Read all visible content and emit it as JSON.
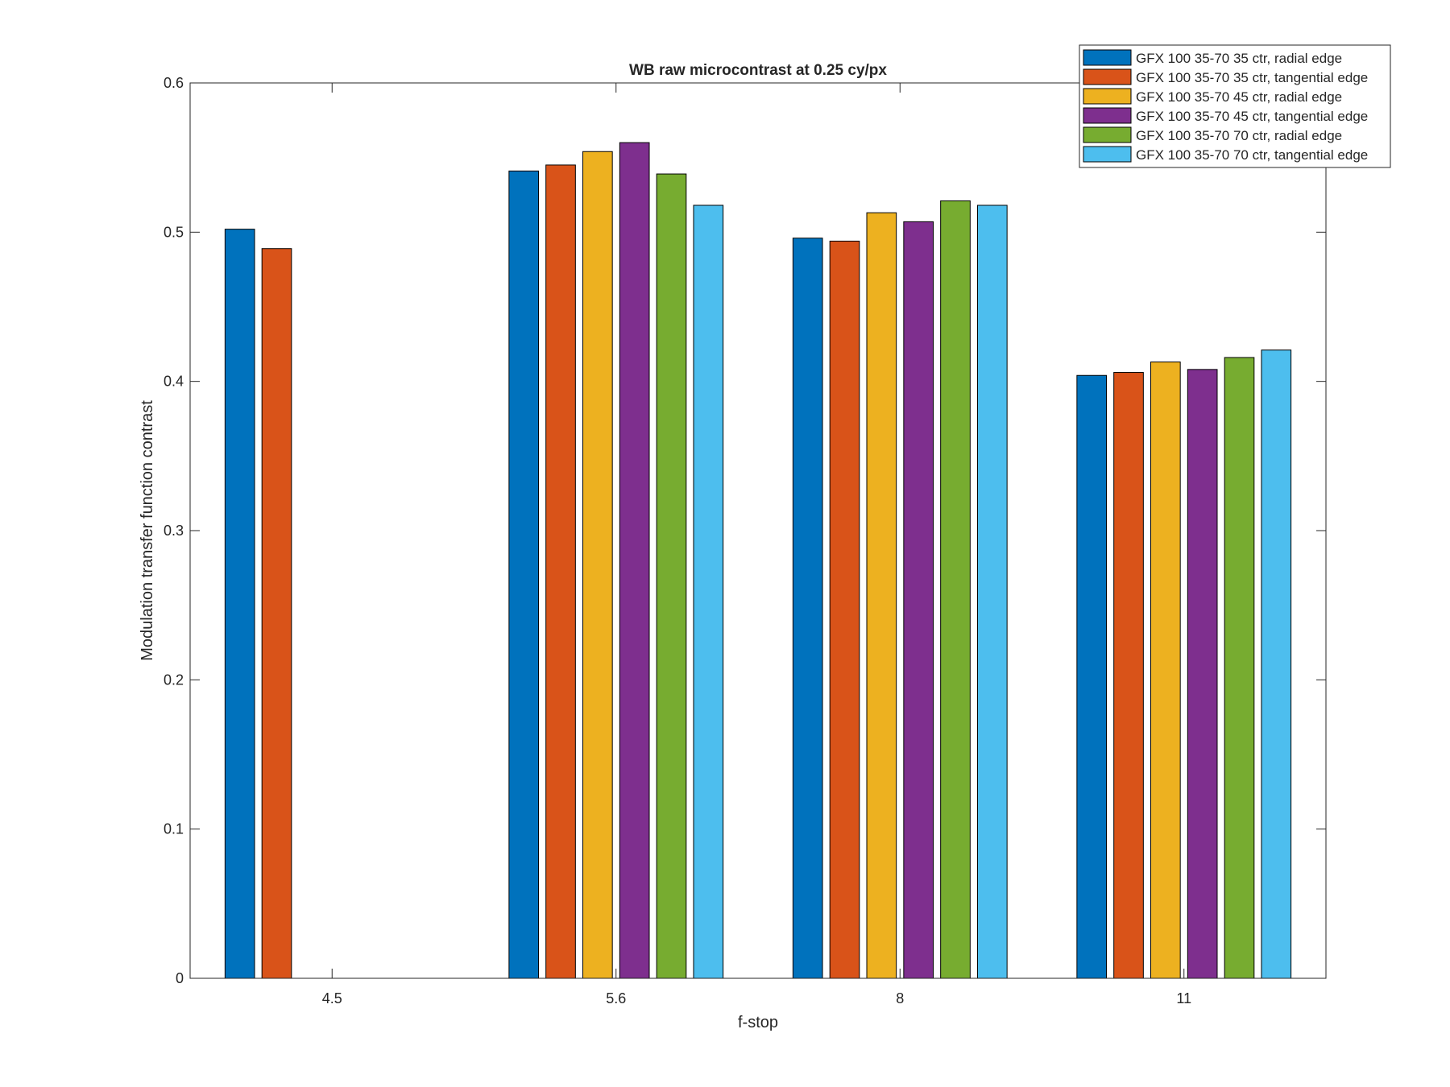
{
  "chart_data": {
    "type": "bar",
    "title": "WB raw  microcontrast at 0.25 cy/px",
    "xlabel": "f-stop",
    "ylabel": "Modulation transfer function contrast",
    "categories": [
      "4.5",
      "5.6",
      "8",
      "11"
    ],
    "ylim": [
      0,
      0.6
    ],
    "yticks": [
      0,
      0.1,
      0.2,
      0.3,
      0.4,
      0.5,
      0.6
    ],
    "ytick_labels": [
      "0",
      "0.1",
      "0.2",
      "0.3",
      "0.4",
      "0.5",
      "0.6"
    ],
    "grid": false,
    "legend_position": "top-right",
    "series": [
      {
        "name": "GFX 100 35-70 35 ctr, radial edge",
        "color": "#0072BD",
        "values": [
          0.502,
          0.541,
          0.496,
          0.404
        ]
      },
      {
        "name": "GFX 100 35-70 35 ctr, tangential edge",
        "color": "#D95319",
        "values": [
          0.489,
          0.545,
          0.494,
          0.406
        ]
      },
      {
        "name": "GFX 100 35-70 45 ctr, radial edge",
        "color": "#EDB120",
        "values": [
          null,
          0.554,
          0.513,
          0.413
        ]
      },
      {
        "name": "GFX 100 35-70 45 ctr, tangential edge",
        "color": "#7E2F8E",
        "values": [
          null,
          0.56,
          0.507,
          0.408
        ]
      },
      {
        "name": "GFX 100 35-70 70 ctr, radial edge",
        "color": "#77AC30",
        "values": [
          null,
          0.539,
          0.521,
          0.416
        ]
      },
      {
        "name": "GFX 100 35-70 70 ctr, tangential edge",
        "color": "#4DBEEE",
        "values": [
          null,
          0.518,
          0.518,
          0.421
        ]
      }
    ]
  }
}
